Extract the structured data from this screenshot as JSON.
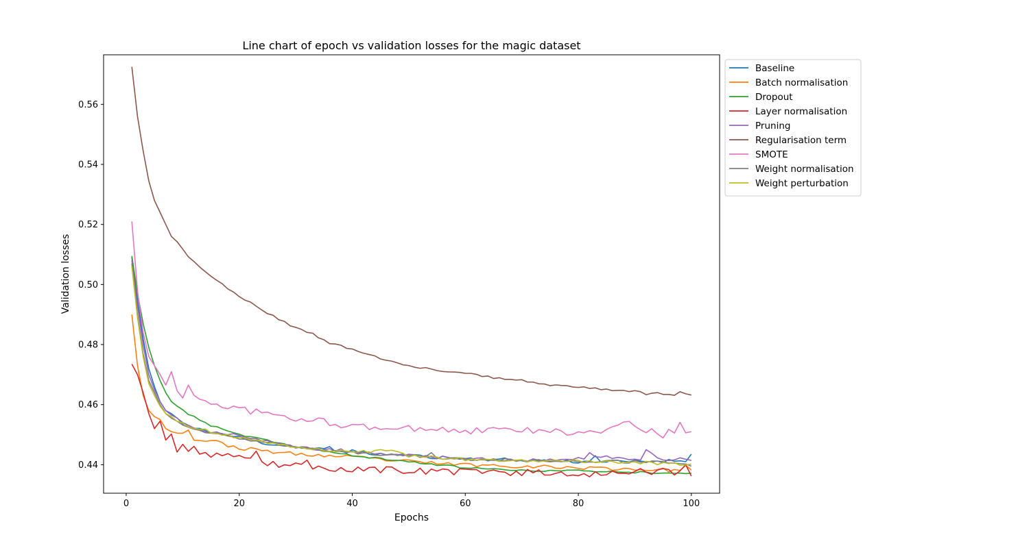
{
  "chart_data": {
    "type": "line",
    "title": "Line chart of epoch vs validation losses for the magic dataset",
    "xlabel": "Epochs",
    "ylabel": "Validation losses",
    "xlim": [
      -4,
      105
    ],
    "ylim": [
      0.4305,
      0.5765
    ],
    "xticks": [
      0,
      20,
      40,
      60,
      80,
      100
    ],
    "yticks": [
      0.44,
      0.46,
      0.48,
      0.5,
      0.52,
      0.54,
      0.56
    ],
    "grid": false,
    "legend_position": "outside-top-right",
    "epochs": [
      1,
      100
    ],
    "series": [
      {
        "name": "Baseline",
        "color": "#1f77b4",
        "anchors": [
          [
            1,
            0.509
          ],
          [
            2,
            0.495
          ],
          [
            3,
            0.482
          ],
          [
            4,
            0.472
          ],
          [
            5,
            0.466
          ],
          [
            6,
            0.461
          ],
          [
            7,
            0.458
          ],
          [
            8,
            0.457
          ],
          [
            10,
            0.454
          ],
          [
            12,
            0.452
          ],
          [
            15,
            0.451
          ],
          [
            20,
            0.449
          ],
          [
            25,
            0.447
          ],
          [
            30,
            0.446
          ],
          [
            35,
            0.445
          ],
          [
            40,
            0.444
          ],
          [
            50,
            0.443
          ],
          [
            60,
            0.442
          ],
          [
            70,
            0.4415
          ],
          [
            80,
            0.441
          ],
          [
            90,
            0.441
          ],
          [
            100,
            0.4415
          ]
        ],
        "noise": 0.0006,
        "seed": 11,
        "overrides": [
          [
            36,
            0.446
          ],
          [
            40,
            0.445
          ],
          [
            83,
            0.443
          ],
          [
            100,
            0.4435
          ]
        ]
      },
      {
        "name": "Batch normalisation",
        "color": "#ff7f0e",
        "anchors": [
          [
            1,
            0.49
          ],
          [
            2,
            0.473
          ],
          [
            3,
            0.463
          ],
          [
            4,
            0.458
          ],
          [
            5,
            0.456
          ],
          [
            6,
            0.455
          ],
          [
            7,
            0.452
          ],
          [
            8,
            0.451
          ],
          [
            10,
            0.451
          ],
          [
            11,
            0.4485
          ],
          [
            15,
            0.448
          ],
          [
            17,
            0.447
          ],
          [
            20,
            0.4455
          ],
          [
            25,
            0.4445
          ],
          [
            30,
            0.4435
          ],
          [
            35,
            0.443
          ],
          [
            40,
            0.4425
          ],
          [
            50,
            0.441
          ],
          [
            60,
            0.44
          ],
          [
            70,
            0.4395
          ],
          [
            80,
            0.439
          ],
          [
            90,
            0.4385
          ],
          [
            100,
            0.438
          ]
        ],
        "noise": 0.0006,
        "seed": 23,
        "overrides": [
          [
            11,
            0.4515
          ],
          [
            99,
            0.4398
          ],
          [
            100,
            0.4382
          ]
        ]
      },
      {
        "name": "Dropout",
        "color": "#2ca02c",
        "anchors": [
          [
            1,
            0.5095
          ],
          [
            2,
            0.497
          ],
          [
            3,
            0.487
          ],
          [
            4,
            0.479
          ],
          [
            5,
            0.473
          ],
          [
            6,
            0.468
          ],
          [
            7,
            0.464
          ],
          [
            8,
            0.461
          ],
          [
            10,
            0.458
          ],
          [
            12,
            0.456
          ],
          [
            15,
            0.453
          ],
          [
            20,
            0.45
          ],
          [
            25,
            0.448
          ],
          [
            30,
            0.446
          ],
          [
            40,
            0.443
          ],
          [
            50,
            0.441
          ],
          [
            60,
            0.439
          ],
          [
            70,
            0.438
          ],
          [
            80,
            0.438
          ],
          [
            90,
            0.4375
          ],
          [
            100,
            0.4372
          ]
        ],
        "noise": 0.0003,
        "seed": 37,
        "overrides": []
      },
      {
        "name": "Layer normalisation",
        "color": "#d62728",
        "anchors": [
          [
            1,
            0.4735
          ],
          [
            2,
            0.47
          ],
          [
            3,
            0.464
          ],
          [
            4,
            0.457
          ],
          [
            5,
            0.452
          ],
          [
            6,
            0.4545
          ],
          [
            7,
            0.448
          ],
          [
            8,
            0.4505
          ],
          [
            9,
            0.444
          ],
          [
            10,
            0.446
          ],
          [
            12,
            0.445
          ],
          [
            15,
            0.4435
          ],
          [
            20,
            0.442
          ],
          [
            25,
            0.4405
          ],
          [
            30,
            0.4395
          ],
          [
            40,
            0.4385
          ],
          [
            50,
            0.438
          ],
          [
            60,
            0.4375
          ],
          [
            70,
            0.4375
          ],
          [
            80,
            0.437
          ],
          [
            90,
            0.4375
          ],
          [
            100,
            0.4375
          ]
        ],
        "noise": 0.0012,
        "seed": 53,
        "overrides": [
          [
            1,
            0.4735
          ],
          [
            6,
            0.4545
          ],
          [
            7,
            0.4482
          ],
          [
            8,
            0.4502
          ],
          [
            9,
            0.4442
          ],
          [
            23,
            0.4445
          ],
          [
            32,
            0.4415
          ],
          [
            99,
            0.44
          ],
          [
            100,
            0.4362
          ]
        ]
      },
      {
        "name": "Pruning",
        "color": "#9467bd",
        "anchors": [
          [
            1,
            0.508
          ],
          [
            2,
            0.493
          ],
          [
            3,
            0.48
          ],
          [
            4,
            0.47
          ],
          [
            5,
            0.465
          ],
          [
            6,
            0.461
          ],
          [
            7,
            0.458
          ],
          [
            8,
            0.4565
          ],
          [
            10,
            0.454
          ],
          [
            12,
            0.452
          ],
          [
            15,
            0.451
          ],
          [
            20,
            0.4495
          ],
          [
            25,
            0.4475
          ],
          [
            30,
            0.446
          ],
          [
            40,
            0.4445
          ],
          [
            50,
            0.443
          ],
          [
            60,
            0.442
          ],
          [
            70,
            0.4415
          ],
          [
            80,
            0.442
          ],
          [
            85,
            0.4425
          ],
          [
            90,
            0.4415
          ],
          [
            100,
            0.442
          ]
        ],
        "noise": 0.0006,
        "seed": 71,
        "overrides": [
          [
            82,
            0.444
          ],
          [
            92,
            0.445
          ],
          [
            93,
            0.4438
          ]
        ]
      },
      {
        "name": "Regularisation term",
        "color": "#8c564b",
        "anchors": [
          [
            1,
            0.5725
          ],
          [
            2,
            0.556
          ],
          [
            3,
            0.5445
          ],
          [
            4,
            0.5345
          ],
          [
            5,
            0.528
          ],
          [
            6,
            0.524
          ],
          [
            7,
            0.52
          ],
          [
            8,
            0.516
          ],
          [
            10,
            0.512
          ],
          [
            11,
            0.509
          ],
          [
            14,
            0.5045
          ],
          [
            15,
            0.5025
          ],
          [
            17,
            0.5
          ],
          [
            20,
            0.496
          ],
          [
            22,
            0.494
          ],
          [
            25,
            0.4905
          ],
          [
            27,
            0.4885
          ],
          [
            30,
            0.4855
          ],
          [
            33,
            0.4835
          ],
          [
            36,
            0.4805
          ],
          [
            40,
            0.4785
          ],
          [
            45,
            0.4755
          ],
          [
            50,
            0.473
          ],
          [
            55,
            0.4715
          ],
          [
            60,
            0.4705
          ],
          [
            65,
            0.469
          ],
          [
            70,
            0.468
          ],
          [
            75,
            0.4665
          ],
          [
            80,
            0.4658
          ],
          [
            85,
            0.465
          ],
          [
            90,
            0.4645
          ],
          [
            95,
            0.4637
          ],
          [
            100,
            0.4632
          ]
        ],
        "noise": 0.0003,
        "seed": 89,
        "overrides": [
          [
            91,
            0.4643
          ],
          [
            92,
            0.4633
          ],
          [
            93,
            0.4638
          ],
          [
            94,
            0.464
          ],
          [
            95,
            0.4634
          ],
          [
            96,
            0.4634
          ],
          [
            97,
            0.4631
          ],
          [
            98,
            0.4643
          ],
          [
            99,
            0.4636
          ],
          [
            100,
            0.4632
          ]
        ]
      },
      {
        "name": "SMOTE",
        "color": "#e377c2",
        "anchors": [
          [
            1,
            0.521
          ],
          [
            2,
            0.498
          ],
          [
            3,
            0.484
          ],
          [
            4,
            0.476
          ],
          [
            5,
            0.473
          ],
          [
            6,
            0.47
          ],
          [
            7,
            0.4665
          ],
          [
            8,
            0.471
          ],
          [
            9,
            0.4645
          ],
          [
            10,
            0.4625
          ],
          [
            11,
            0.4665
          ],
          [
            12,
            0.463
          ],
          [
            15,
            0.4605
          ],
          [
            20,
            0.4585
          ],
          [
            25,
            0.457
          ],
          [
            30,
            0.455
          ],
          [
            35,
            0.4545
          ],
          [
            40,
            0.4525
          ],
          [
            45,
            0.4525
          ],
          [
            50,
            0.452
          ],
          [
            55,
            0.452
          ],
          [
            60,
            0.451
          ],
          [
            65,
            0.4515
          ],
          [
            70,
            0.4515
          ],
          [
            75,
            0.451
          ],
          [
            80,
            0.4505
          ],
          [
            85,
            0.451
          ],
          [
            88,
            0.4542
          ],
          [
            90,
            0.452
          ],
          [
            95,
            0.451
          ],
          [
            100,
            0.451
          ]
        ],
        "noise": 0.0011,
        "seed": 97,
        "overrides": [
          [
            8,
            0.471
          ],
          [
            10,
            0.4622
          ],
          [
            11,
            0.4665
          ],
          [
            88,
            0.4542
          ],
          [
            89,
            0.4544
          ],
          [
            95,
            0.4489
          ],
          [
            98,
            0.4541
          ],
          [
            99,
            0.4506
          ],
          [
            100,
            0.451
          ]
        ]
      },
      {
        "name": "Weight normalisation",
        "color": "#7f7f7f",
        "anchors": [
          [
            1,
            0.507
          ],
          [
            2,
            0.49
          ],
          [
            3,
            0.477
          ],
          [
            4,
            0.468
          ],
          [
            5,
            0.464
          ],
          [
            6,
            0.46
          ],
          [
            7,
            0.457
          ],
          [
            8,
            0.4555
          ],
          [
            10,
            0.453
          ],
          [
            12,
            0.452
          ],
          [
            15,
            0.4505
          ],
          [
            20,
            0.4485
          ],
          [
            25,
            0.4475
          ],
          [
            30,
            0.4455
          ],
          [
            40,
            0.444
          ],
          [
            50,
            0.443
          ],
          [
            60,
            0.4418
          ],
          [
            70,
            0.4415
          ],
          [
            80,
            0.4412
          ],
          [
            90,
            0.441
          ],
          [
            100,
            0.4405
          ]
        ],
        "noise": 0.0005,
        "seed": 113,
        "overrides": [
          [
            54,
            0.444
          ],
          [
            100,
            0.4395
          ]
        ]
      },
      {
        "name": "Weight perturbation",
        "color": "#bcbd22",
        "anchors": [
          [
            1,
            0.506
          ],
          [
            2,
            0.489
          ],
          [
            3,
            0.476
          ],
          [
            4,
            0.467
          ],
          [
            5,
            0.463
          ],
          [
            6,
            0.4595
          ],
          [
            7,
            0.457
          ],
          [
            8,
            0.456
          ],
          [
            10,
            0.4535
          ],
          [
            12,
            0.4525
          ],
          [
            15,
            0.451
          ],
          [
            20,
            0.449
          ],
          [
            25,
            0.4475
          ],
          [
            30,
            0.446
          ],
          [
            40,
            0.444
          ],
          [
            47,
            0.4448
          ],
          [
            50,
            0.443
          ],
          [
            60,
            0.4418
          ],
          [
            70,
            0.4412
          ],
          [
            80,
            0.4412
          ],
          [
            90,
            0.4408
          ],
          [
            100,
            0.44
          ]
        ],
        "noise": 0.0005,
        "seed": 131,
        "overrides": [
          [
            47,
            0.4448
          ],
          [
            100,
            0.4402
          ]
        ]
      }
    ]
  }
}
